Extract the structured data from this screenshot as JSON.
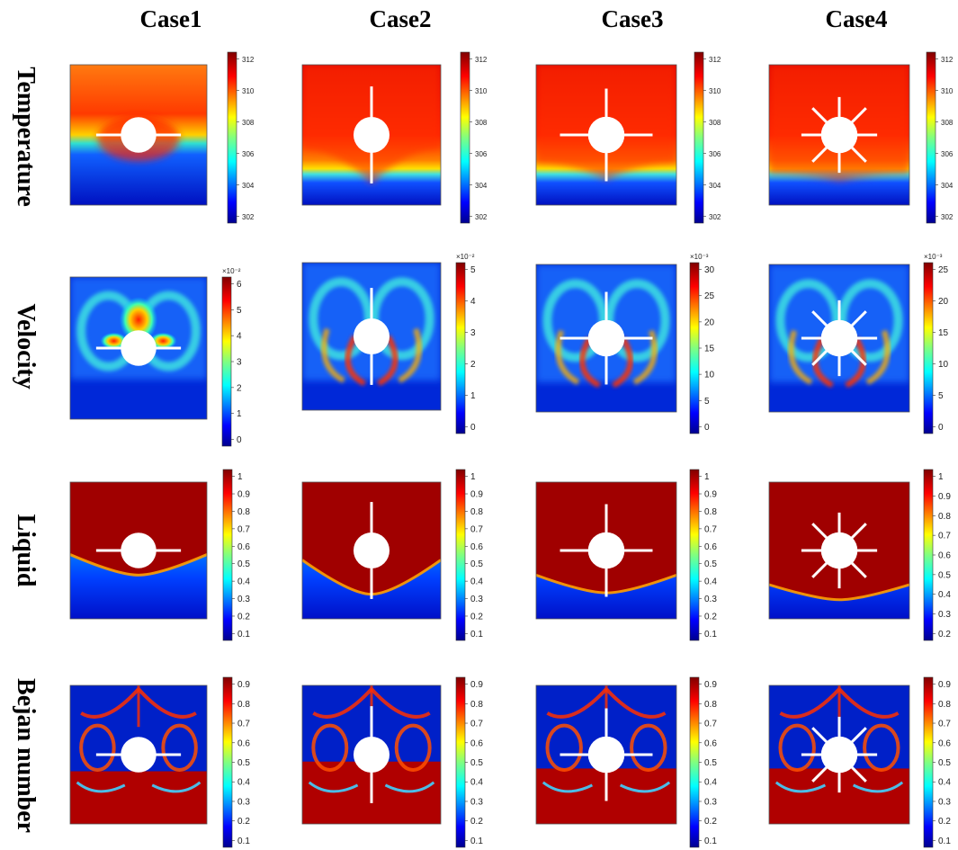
{
  "columns": [
    "Case1",
    "Case2",
    "Case3",
    "Case4"
  ],
  "rows": [
    {
      "label": "Temperature",
      "colorbars": [
        {
          "ticks": [
            "312",
            "310",
            "308",
            "306",
            "304",
            "302"
          ],
          "multiplier": ""
        },
        {
          "ticks": [
            "312",
            "310",
            "308",
            "306",
            "304",
            "302"
          ],
          "multiplier": ""
        },
        {
          "ticks": [
            "312",
            "310",
            "308",
            "306",
            "304",
            "302"
          ],
          "multiplier": ""
        },
        {
          "ticks": [
            "312",
            "310",
            "308",
            "306",
            "304",
            "302"
          ],
          "multiplier": ""
        }
      ]
    },
    {
      "label": "Velocity",
      "colorbars": [
        {
          "ticks": [
            "6",
            "5",
            "4",
            "3",
            "2",
            "1",
            "0"
          ],
          "multiplier": "×10⁻²"
        },
        {
          "ticks": [
            "5",
            "4",
            "3",
            "2",
            "1",
            "0"
          ],
          "multiplier": "×10⁻²"
        },
        {
          "ticks": [
            "30",
            "25",
            "20",
            "15",
            "10",
            "5",
            "0"
          ],
          "multiplier": "×10⁻³"
        },
        {
          "ticks": [
            "25",
            "20",
            "15",
            "10",
            "5",
            "0"
          ],
          "multiplier": "×10⁻³"
        }
      ]
    },
    {
      "label": "Liquid",
      "colorbars": [
        {
          "ticks": [
            "1",
            "0.9",
            "0.8",
            "0.7",
            "0.6",
            "0.5",
            "0.4",
            "0.3",
            "0.2",
            "0.1"
          ],
          "multiplier": ""
        },
        {
          "ticks": [
            "1",
            "0.9",
            "0.8",
            "0.7",
            "0.6",
            "0.5",
            "0.4",
            "0.3",
            "0.2",
            "0.1"
          ],
          "multiplier": ""
        },
        {
          "ticks": [
            "1",
            "0.9",
            "0.8",
            "0.7",
            "0.6",
            "0.5",
            "0.4",
            "0.3",
            "0.2",
            "0.1"
          ],
          "multiplier": ""
        },
        {
          "ticks": [
            "1",
            "0.9",
            "0.8",
            "0.7",
            "0.6",
            "0.5",
            "0.4",
            "0.3",
            "0.2"
          ],
          "multiplier": ""
        }
      ]
    },
    {
      "label": "Bejan number",
      "colorbars": [
        {
          "ticks": [
            "0.9",
            "0.8",
            "0.7",
            "0.6",
            "0.5",
            "0.4",
            "0.3",
            "0.2",
            "0.1"
          ],
          "multiplier": ""
        },
        {
          "ticks": [
            "0.9",
            "0.8",
            "0.7",
            "0.6",
            "0.5",
            "0.4",
            "0.3",
            "0.2",
            "0.1"
          ],
          "multiplier": ""
        },
        {
          "ticks": [
            "0.9",
            "0.8",
            "0.7",
            "0.6",
            "0.5",
            "0.4",
            "0.3",
            "0.2",
            "0.1"
          ],
          "multiplier": ""
        },
        {
          "ticks": [
            "0.9",
            "0.8",
            "0.7",
            "0.6",
            "0.5",
            "0.4",
            "0.3",
            "0.2",
            "0.1"
          ],
          "multiplier": ""
        }
      ]
    }
  ],
  "colors": {
    "jet": [
      "#00008f",
      "#0000ff",
      "#0080ff",
      "#00ffff",
      "#80ff80",
      "#ffff00",
      "#ff8000",
      "#ff0000",
      "#800000"
    ],
    "hot_dark": "#a00000",
    "cold_dark": "#0020b0",
    "tube": "#ffffff"
  },
  "fins": {
    "Case1": "horizontal",
    "Case2": "vertical",
    "Case3": "cross",
    "Case4": "star"
  }
}
